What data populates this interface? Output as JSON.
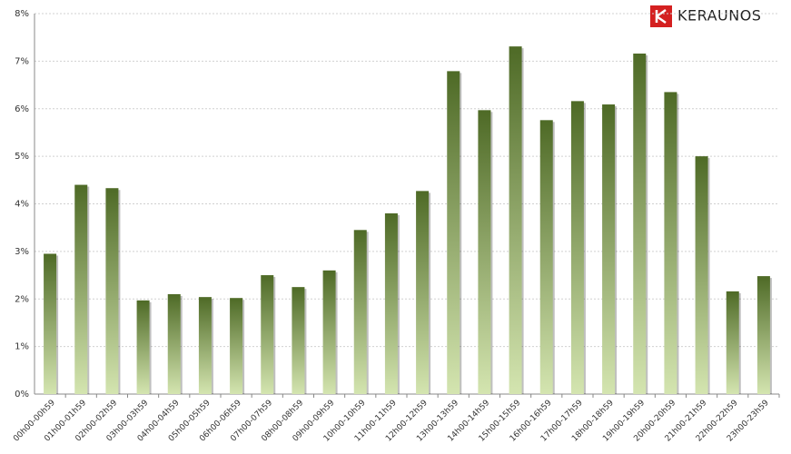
{
  "logo": "KERAUNOS",
  "chart_data": {
    "type": "bar",
    "categories": [
      "00h00-00h59",
      "01h00-01h59",
      "02h00-02h59",
      "03h00-03h59",
      "04h00-04h59",
      "05h00-05h59",
      "06h00-06h59",
      "07h00-07h59",
      "08h00-08h59",
      "09h00-09h59",
      "10h00-10h59",
      "11h00-11h59",
      "12h00-12h59",
      "13h00-13h59",
      "14h00-14h59",
      "15h00-15h59",
      "16h00-16h59",
      "17h00-17h59",
      "18h00-18h59",
      "19h00-19h59",
      "20h00-20h59",
      "21h00-21h59",
      "22h00-22h59",
      "23h00-23h59"
    ],
    "values": [
      2.95,
      4.4,
      4.33,
      1.97,
      2.1,
      2.04,
      2.02,
      2.5,
      2.25,
      2.6,
      3.45,
      3.8,
      4.27,
      6.79,
      5.97,
      7.31,
      5.76,
      6.16,
      6.09,
      7.16,
      6.35,
      5.0,
      2.16,
      2.48
    ],
    "color": [
      "#4e6a26",
      "#d4e5b0"
    ],
    "ylim": [
      0,
      8
    ],
    "yticks": [
      {
        "value": 0,
        "label": "0%"
      },
      {
        "value": 1,
        "label": "1%"
      },
      {
        "value": 2,
        "label": "2%"
      },
      {
        "value": 3,
        "label": "3%"
      },
      {
        "value": 4,
        "label": "4%"
      },
      {
        "value": 5,
        "label": "5%"
      },
      {
        "value": 6,
        "label": "6%"
      },
      {
        "value": 7,
        "label": "7%"
      },
      {
        "value": 8,
        "label": "8%"
      }
    ],
    "grid": true
  }
}
